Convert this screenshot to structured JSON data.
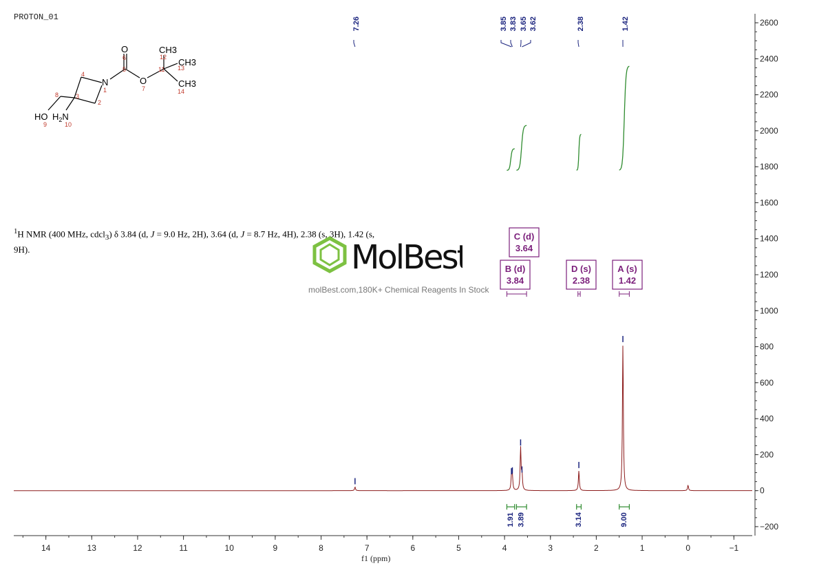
{
  "spectrum": {
    "title": "PROTON_01",
    "description_html": "<sup>1</sup>H NMR (400 MHz, cdcl<sub>3</sub>) δ 3.84 (d, <i>J</i> = 9.0 Hz, 2H), 3.64 (d, <i>J</i> = 8.7 Hz, 4H), 2.38 (s, 3H), 1.42 (s, 9H)."
  },
  "watermark": {
    "brand": "MolBest",
    "tagline": "molBest.com,180K+ Chemical Reagents In Stock",
    "color": "#7dc142"
  },
  "molecule": {
    "atoms": [
      "O",
      "N",
      "O",
      "CH3",
      "CH3",
      "CH3",
      "HO",
      "H2N"
    ],
    "numbers": [
      "1",
      "2",
      "3",
      "4",
      "5",
      "6",
      "7",
      "8",
      "9",
      "10",
      "11",
      "12",
      "13",
      "14"
    ]
  },
  "chart_data": {
    "type": "line",
    "title": "",
    "xlabel": "f1 (ppm)",
    "ylabel": "",
    "xlim": [
      14.7,
      -1.4
    ],
    "ylim": [
      -250,
      2650
    ],
    "x_ticks": [
      14,
      13,
      12,
      11,
      10,
      9,
      8,
      7,
      6,
      5,
      4,
      3,
      2,
      1,
      0,
      -1
    ],
    "x_tick_labels": [
      "14",
      "13",
      "12",
      "11",
      "10",
      "9",
      "8",
      "7",
      "6",
      "5",
      "4",
      "3",
      "2",
      "1",
      "0",
      "−1"
    ],
    "y_ticks": [
      -200,
      0,
      200,
      400,
      600,
      800,
      1000,
      1200,
      1400,
      1600,
      1800,
      2000,
      2200,
      2400,
      2600
    ],
    "y_tick_labels": [
      "−200",
      "0",
      "200",
      "400",
      "600",
      "800",
      "1000",
      "1200",
      "1400",
      "1600",
      "1800",
      "2000",
      "2200",
      "2400",
      "2600"
    ],
    "spectrum_color": "#8b1a1a",
    "peak_color": "#1a237e",
    "integral_color": "#2e8b2e",
    "multiplet_color": "#7b1f7b",
    "peaks": [
      {
        "ppm": 7.26,
        "height": 20,
        "label": "7.26"
      },
      {
        "ppm": 3.85,
        "height": 75,
        "label": "3.85"
      },
      {
        "ppm": 3.83,
        "height": 80,
        "label": "3.83"
      },
      {
        "ppm": 3.65,
        "height": 235,
        "label": "3.65"
      },
      {
        "ppm": 3.62,
        "height": 85,
        "label": "3.62"
      },
      {
        "ppm": 2.38,
        "height": 110,
        "label": "2.38"
      },
      {
        "ppm": 1.42,
        "height": 810,
        "label": "1.42"
      },
      {
        "ppm": 0.0,
        "height": 30,
        "label": ""
      }
    ],
    "peak_label_ppm": [
      7.26,
      3.85,
      3.83,
      3.65,
      3.62,
      2.38,
      1.42
    ],
    "integrals": [
      {
        "from": 3.95,
        "to": 3.78,
        "y_start": 1780,
        "y_end": 1900,
        "value": "1.91"
      },
      {
        "from": 3.74,
        "to": 3.52,
        "y_start": 1780,
        "y_end": 2030,
        "value": "3.89"
      },
      {
        "from": 2.43,
        "to": 2.33,
        "y_start": 1780,
        "y_end": 1980,
        "value": "3.14"
      },
      {
        "from": 1.5,
        "to": 1.28,
        "y_start": 1780,
        "y_end": 2360,
        "value": "9.00"
      }
    ],
    "multiplets": [
      {
        "letter": "C (d)",
        "shift": "3.64",
        "center": 3.64
      },
      {
        "letter": "B (d)",
        "shift": "3.84",
        "center": 3.84
      },
      {
        "letter": "D (s)",
        "shift": "2.38",
        "center": 2.38
      },
      {
        "letter": "A (s)",
        "shift": "1.42",
        "center": 1.42
      }
    ]
  }
}
